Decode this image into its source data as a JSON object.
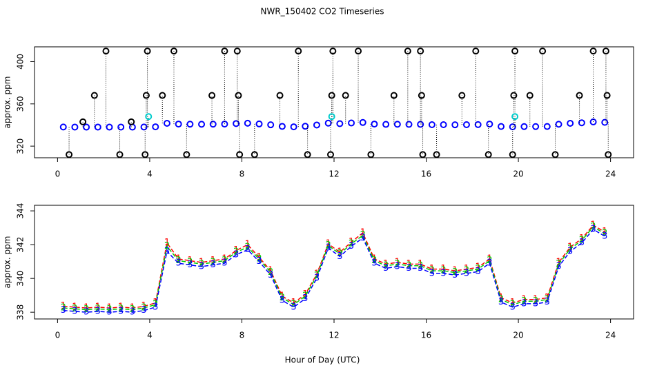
{
  "chart_data": [
    {
      "type": "scatter",
      "title": "NWR_150402  CO2 Timeseries",
      "ylabel": "approx. ppm",
      "xlim": [
        -1,
        25
      ],
      "xticks": [
        0,
        4,
        8,
        12,
        16,
        20,
        24
      ],
      "ylim": [
        309,
        414
      ],
      "yticks": [
        320,
        360,
        400
      ],
      "series": [
        {
          "color": "#0000ff",
          "role": "data",
          "x": [
            0.25,
            0.75,
            1.25,
            1.75,
            2.25,
            2.75,
            3.25,
            3.75,
            4.25,
            4.75,
            5.25,
            5.75,
            6.25,
            6.75,
            7.25,
            7.75,
            8.25,
            8.75,
            9.25,
            9.75,
            10.25,
            10.75,
            11.25,
            11.75,
            12.25,
            12.75,
            13.25,
            13.75,
            14.25,
            14.75,
            15.25,
            15.75,
            16.25,
            16.75,
            17.25,
            17.75,
            18.25,
            18.75,
            19.25,
            19.75,
            20.25,
            20.75,
            21.25,
            21.75,
            22.25,
            22.75,
            23.25,
            23.75
          ],
          "values": [
            338.1,
            338.05,
            338,
            338.05,
            338,
            338.05,
            338,
            338.1,
            338.3,
            341.6,
            340.9,
            340.8,
            340.7,
            340.8,
            340.9,
            341.4,
            341.7,
            341,
            340.2,
            338.7,
            338.3,
            338.8,
            340,
            341.8,
            341.3,
            341.9,
            342.4,
            340.9,
            340.6,
            340.7,
            340.6,
            340.6,
            340.3,
            340.3,
            340.2,
            340.3,
            340.4,
            340.9,
            338.6,
            338.3,
            338.5,
            338.5,
            338.6,
            340.7,
            341.6,
            342.1,
            342.9,
            342.5
          ]
        },
        {
          "color": "#000000",
          "role": "outlier",
          "x": [
            0.5,
            1.1,
            1.6,
            2.1,
            2.7,
            3.2,
            3.8,
            3.85,
            3.9,
            4.55,
            5.05,
            5.6,
            6.7,
            7.25,
            7.8,
            7.85,
            7.9,
            8.55,
            9.65,
            10.45,
            10.85,
            11.85,
            11.9,
            11.95,
            12.5,
            13.05,
            13.6,
            14.6,
            15.2,
            15.75,
            15.8,
            15.85,
            16.45,
            17.55,
            18.15,
            18.7,
            19.75,
            19.8,
            19.85,
            20.5,
            21.05,
            21.6,
            22.65,
            23.25,
            23.8,
            23.85,
            23.9
          ],
          "values": [
            312,
            343,
            368,
            410,
            312,
            343,
            312,
            368,
            410,
            368,
            410,
            312,
            368,
            410,
            410,
            368,
            312,
            312,
            368,
            410,
            312,
            312,
            368,
            410,
            368,
            410,
            312,
            368,
            410,
            410,
            368,
            312,
            312,
            368,
            410,
            312,
            312,
            368,
            410,
            368,
            410,
            312,
            368,
            410,
            410,
            368,
            312
          ]
        },
        {
          "color": "#00cccc",
          "role": "outlier",
          "x": [
            3.95,
            11.9,
            19.85
          ],
          "values": [
            348,
            348,
            348
          ]
        }
      ]
    },
    {
      "type": "line",
      "ylabel": "approx. ppm",
      "xlabel": "Hour of Day (UTC)",
      "xlim": [
        -1,
        25
      ],
      "xticks": [
        0,
        4,
        8,
        12,
        16,
        20,
        24
      ],
      "ylim": [
        337.6,
        344.33
      ],
      "yticks": [
        338,
        340,
        342,
        344
      ],
      "x": [
        0.25,
        0.75,
        1.25,
        1.75,
        2.25,
        2.75,
        3.25,
        3.75,
        4.25,
        4.75,
        5.25,
        5.75,
        6.25,
        6.75,
        7.25,
        7.75,
        8.25,
        8.75,
        9.25,
        9.75,
        10.25,
        10.75,
        11.25,
        11.75,
        12.25,
        12.75,
        13.25,
        13.75,
        14.25,
        14.75,
        15.25,
        15.75,
        16.25,
        16.75,
        17.25,
        17.75,
        18.25,
        18.75,
        19.25,
        19.75,
        20.25,
        20.75,
        21.25,
        21.75,
        22.25,
        22.75,
        23.25,
        23.75
      ],
      "series": [
        {
          "symbol": "1",
          "color": "#ff0000",
          "values": [
            338.35,
            338.3,
            338.25,
            338.3,
            338.25,
            338.3,
            338.25,
            338.35,
            338.55,
            342.1,
            341.15,
            341.05,
            340.95,
            341.05,
            341.15,
            341.65,
            342,
            341.25,
            340.45,
            338.95,
            338.55,
            339.05,
            340.25,
            342.05,
            341.55,
            342.15,
            342.7,
            341.15,
            340.85,
            340.95,
            340.85,
            340.85,
            340.55,
            340.55,
            340.45,
            340.55,
            340.65,
            341.15,
            338.85,
            338.55,
            338.75,
            338.75,
            338.85,
            340.95,
            341.85,
            342.35,
            343.15,
            342.75
          ]
        },
        {
          "symbol": "2",
          "color": "#00cc00",
          "values": [
            338.25,
            338.2,
            338.15,
            338.2,
            338.15,
            338.2,
            338.15,
            338.25,
            338.45,
            341.9,
            341.05,
            340.95,
            340.85,
            340.95,
            341.05,
            341.55,
            341.85,
            341.15,
            340.35,
            338.85,
            338.45,
            338.95,
            340.15,
            341.95,
            341.45,
            342.05,
            342.55,
            341.05,
            340.75,
            340.85,
            340.75,
            340.75,
            340.45,
            340.45,
            340.35,
            340.45,
            340.55,
            341.05,
            338.75,
            338.45,
            338.65,
            338.65,
            338.75,
            340.85,
            341.75,
            342.25,
            343.05,
            342.65
          ]
        },
        {
          "symbol": "3",
          "color": "#0000ff",
          "values": [
            338.1,
            338.05,
            338,
            338.05,
            338,
            338.05,
            338,
            338.1,
            338.3,
            341.6,
            340.9,
            340.8,
            340.7,
            340.8,
            340.9,
            341.4,
            341.7,
            341,
            340.2,
            338.7,
            338.3,
            338.8,
            340,
            341.8,
            341.3,
            341.9,
            342.4,
            340.9,
            340.6,
            340.7,
            340.6,
            340.6,
            340.3,
            340.3,
            340.2,
            340.3,
            340.4,
            340.9,
            338.6,
            338.3,
            338.5,
            338.5,
            338.6,
            340.7,
            341.6,
            342.1,
            342.9,
            342.5
          ]
        }
      ]
    }
  ]
}
